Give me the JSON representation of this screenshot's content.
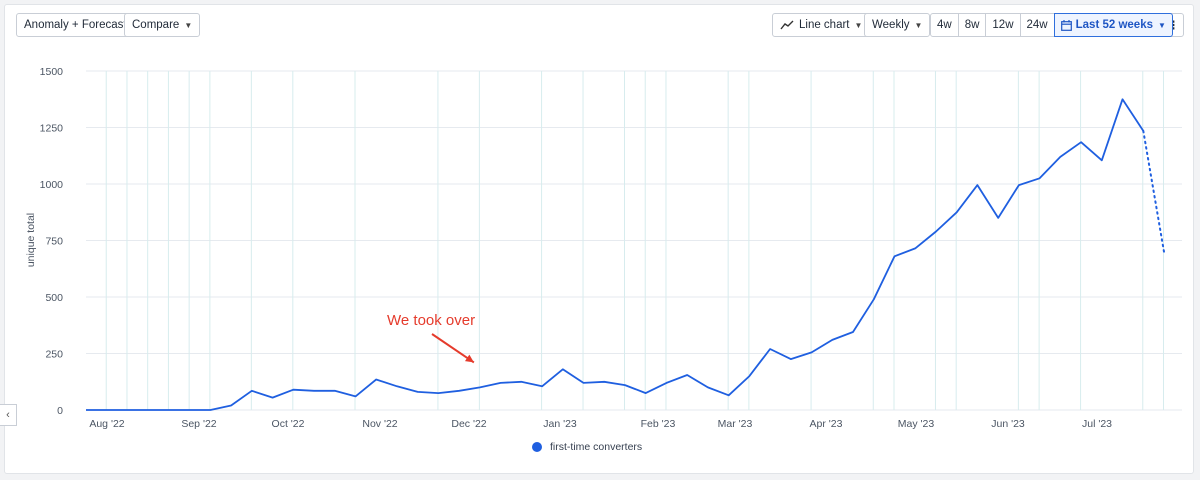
{
  "toolbar": {
    "anomaly_label": "Anomaly + Forecast",
    "compare_label": "Compare",
    "chart_type_label": "Line chart",
    "interval_label": "Weekly",
    "ranges": [
      "4w",
      "8w",
      "12w",
      "24w"
    ],
    "active_range_label": "Last 52 weeks",
    "more_label": "⋮"
  },
  "colors": {
    "series": "#1f5fe0",
    "annotation": "#e53b2c",
    "accent": "#2f6fdd",
    "grid": "#e6eaef",
    "week_line": "#d7ecee"
  },
  "chart_data": {
    "type": "line",
    "ylabel": "unique total",
    "ylim": [
      0,
      1500
    ],
    "yticks": [
      0,
      250,
      500,
      750,
      1000,
      1250,
      1500
    ],
    "x_tick_labels": [
      "Aug '22",
      "Sep '22",
      "Oct '22",
      "Nov '22",
      "Dec '22",
      "Jan '23",
      "Feb '23",
      "Mar '23",
      "Apr '23",
      "May '23",
      "Jun '23",
      "Jul '23"
    ],
    "grid": true,
    "legend_position": "bottom",
    "series": [
      {
        "name": "first-time converters",
        "values": [
          0,
          0,
          0,
          0,
          0,
          0,
          0,
          20,
          85,
          55,
          90,
          85,
          85,
          60,
          135,
          105,
          80,
          75,
          85,
          100,
          120,
          125,
          105,
          180,
          120,
          125,
          110,
          75,
          120,
          155,
          100,
          65,
          150,
          270,
          225,
          255,
          310,
          345,
          490,
          680,
          715,
          790,
          875,
          995,
          850,
          995,
          1025,
          1120,
          1185,
          1105,
          1375,
          1235
        ],
        "forecast_values": [
          1235,
          700
        ]
      }
    ],
    "annotations": [
      {
        "text": "We took over",
        "target_week": 19
      }
    ]
  }
}
